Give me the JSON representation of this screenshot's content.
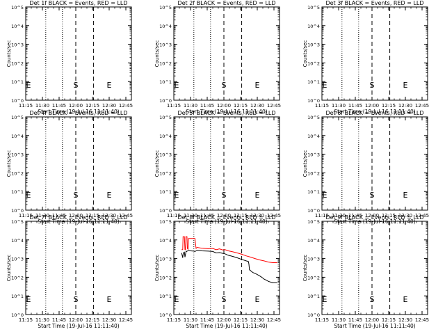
{
  "chart_data": [
    {
      "type": "line",
      "title": "Det 1f BLACK = Events, RED = LLD",
      "ylabel": "Counts/sec",
      "xlabel": "Start Time (19-Jul-16 11:11:40)",
      "xticks": [
        "11:15",
        "11:30",
        "11:45",
        "12:00",
        "12:15",
        "12:30",
        "12:45"
      ],
      "yticks": [
        "10^0",
        "10^1",
        "10^2",
        "10^3",
        "10^4",
        "10^5"
      ],
      "yscale": "log",
      "ylim": [
        1,
        100000
      ],
      "xlim_minutes": [
        675,
        770
      ],
      "dotted_lines_minutes": [
        693,
        708
      ],
      "dashed_lines_minutes": [
        720,
        736
      ],
      "markers": [
        {
          "label": "E",
          "x": 675
        },
        {
          "label": "S",
          "x": 720
        },
        {
          "label": "E",
          "x": 750
        }
      ],
      "series": []
    },
    {
      "type": "line",
      "title": "Det 2f BLACK = Events, RED = LLD",
      "ylabel": "Counts/sec",
      "xlabel": "Start Time (19-Jul-16 11:11:40)",
      "xticks": [
        "11:15",
        "11:30",
        "11:45",
        "12:00",
        "12:15",
        "12:30",
        "12:45"
      ],
      "yticks": [
        "10^0",
        "10^1",
        "10^2",
        "10^3",
        "10^4",
        "10^5"
      ],
      "yscale": "log",
      "ylim": [
        1,
        100000
      ],
      "xlim_minutes": [
        675,
        770
      ],
      "dotted_lines_minutes": [
        693,
        708
      ],
      "dashed_lines_minutes": [
        720,
        736
      ],
      "markers": [
        {
          "label": "E",
          "x": 675
        },
        {
          "label": "S",
          "x": 720
        },
        {
          "label": "E",
          "x": 750
        }
      ],
      "series": []
    },
    {
      "type": "line",
      "title": "Det 3f BLACK = Events, RED = LLD",
      "ylabel": "Counts/sec",
      "xlabel": "Start Time (19-Jul-16 11:11:40)",
      "xticks": [
        "11:15",
        "11:30",
        "11:45",
        "12:00",
        "12:15",
        "12:30",
        "12:45"
      ],
      "yticks": [
        "10^0",
        "10^1",
        "10^2",
        "10^3",
        "10^4",
        "10^5"
      ],
      "yscale": "log",
      "ylim": [
        1,
        100000
      ],
      "xlim_minutes": [
        675,
        770
      ],
      "dotted_lines_minutes": [
        693,
        708
      ],
      "dashed_lines_minutes": [
        720,
        736
      ],
      "markers": [
        {
          "label": "E",
          "x": 675
        },
        {
          "label": "S",
          "x": 720
        },
        {
          "label": "E",
          "x": 750
        }
      ],
      "series": []
    },
    {
      "type": "line",
      "title": "Det 4f BLACK = Events, RED = LLD",
      "ylabel": "Counts/sec",
      "xlabel": "Start Time (19-Jul-16 11:11:40)",
      "xticks": [
        "11:15",
        "11:30",
        "11:45",
        "12:00",
        "12:15",
        "12:30",
        "12:45"
      ],
      "yticks": [
        "10^0",
        "10^1",
        "10^2",
        "10^3",
        "10^4",
        "10^5"
      ],
      "yscale": "log",
      "ylim": [
        1,
        100000
      ],
      "xlim_minutes": [
        675,
        770
      ],
      "dotted_lines_minutes": [
        693,
        708
      ],
      "dashed_lines_minutes": [
        720,
        736
      ],
      "markers": [
        {
          "label": "E",
          "x": 675
        },
        {
          "label": "S",
          "x": 720
        },
        {
          "label": "E",
          "x": 750
        }
      ],
      "series": []
    },
    {
      "type": "line",
      "title": "Det 5f BLACK = Events, RED = LLD",
      "ylabel": "Counts/sec",
      "xlabel": "Start Time (19-Jul-16 11:11:40)",
      "xticks": [
        "11:15",
        "11:30",
        "11:45",
        "12:00",
        "12:15",
        "12:30",
        "12:45"
      ],
      "yticks": [
        "10^0",
        "10^1",
        "10^2",
        "10^3",
        "10^4",
        "10^5"
      ],
      "yscale": "log",
      "ylim": [
        1,
        100000
      ],
      "xlim_minutes": [
        675,
        770
      ],
      "dotted_lines_minutes": [
        693,
        708
      ],
      "dashed_lines_minutes": [
        720,
        736
      ],
      "markers": [
        {
          "label": "E",
          "x": 675
        },
        {
          "label": "S",
          "x": 720
        },
        {
          "label": "E",
          "x": 750
        }
      ],
      "series": []
    },
    {
      "type": "line",
      "title": "Det 6f BLACK = Events, RED = LLD",
      "ylabel": "Counts/sec",
      "xlabel": "Start Time (19-Jul-16 11:11:40)",
      "xticks": [
        "11:15",
        "11:30",
        "11:45",
        "12:00",
        "12:15",
        "12:30",
        "12:45"
      ],
      "yticks": [
        "10^0",
        "10^1",
        "10^2",
        "10^3",
        "10^4",
        "10^5"
      ],
      "yscale": "log",
      "ylim": [
        1,
        100000
      ],
      "xlim_minutes": [
        675,
        770
      ],
      "dotted_lines_minutes": [
        693,
        708
      ],
      "dashed_lines_minutes": [
        720,
        736
      ],
      "markers": [
        {
          "label": "E",
          "x": 675
        },
        {
          "label": "S",
          "x": 720
        },
        {
          "label": "E",
          "x": 750
        }
      ],
      "series": []
    },
    {
      "type": "line",
      "title": "Det 7f BLACK = Events, RED = LLD",
      "ylabel": "Counts/sec",
      "xlabel": "Start Time (19-Jul-16 11:11:40)",
      "xticks": [
        "11:15",
        "11:30",
        "11:45",
        "12:00",
        "12:15",
        "12:30",
        "12:45"
      ],
      "yticks": [
        "10^0",
        "10^1",
        "10^2",
        "10^3",
        "10^4",
        "10^5"
      ],
      "yscale": "log",
      "ylim": [
        1,
        100000
      ],
      "xlim_minutes": [
        675,
        770
      ],
      "dotted_lines_minutes": [
        693,
        708
      ],
      "dashed_lines_minutes": [
        720,
        736
      ],
      "markers": [
        {
          "label": "E",
          "x": 675
        },
        {
          "label": "S",
          "x": 720
        },
        {
          "label": "E",
          "x": 750
        }
      ],
      "series": []
    },
    {
      "type": "line",
      "title": "Det 8f BLACK = Events, RED = LLD",
      "ylabel": "Counts/sec",
      "xlabel": "Start Time (19-Jul-16 11:11:40)",
      "xticks": [
        "11:15",
        "11:30",
        "11:45",
        "12:00",
        "12:15",
        "12:30",
        "12:45"
      ],
      "yticks": [
        "10^0",
        "10^1",
        "10^2",
        "10^3",
        "10^4",
        "10^5"
      ],
      "yscale": "log",
      "ylim": [
        1,
        100000
      ],
      "xlim_minutes": [
        675,
        770
      ],
      "dotted_lines_minutes": [
        693,
        708
      ],
      "dashed_lines_minutes": [
        720,
        736
      ],
      "markers": [
        {
          "label": "E",
          "x": 675
        },
        {
          "label": "S",
          "x": 720
        },
        {
          "label": "E",
          "x": 750
        }
      ],
      "series": [
        {
          "color": "#ff0000",
          "x": [
            682,
            683,
            683.3,
            684.5,
            685,
            685.5,
            685.8,
            686.8,
            687.2,
            687.8,
            688.2,
            689,
            693,
            694,
            695,
            696,
            700,
            706,
            710,
            713,
            716,
            719,
            721,
            724,
            728,
            732,
            736,
            740,
            744,
            748,
            752,
            756,
            760,
            764,
            768
          ],
          "y": [
            3000,
            3000,
            15000,
            15000,
            3000,
            3000,
            15000,
            15000,
            3500,
            3200,
            12000,
            12000,
            12000,
            12000,
            3500,
            4000,
            3600,
            3400,
            3500,
            3000,
            3300,
            2900,
            3000,
            2600,
            2300,
            2000,
            1700,
            1400,
            1200,
            1000,
            850,
            750,
            650,
            600,
            600
          ]
        },
        {
          "color": "#000000",
          "x": [
            682,
            683,
            683.5,
            684.5,
            685,
            686,
            686.5,
            687.5,
            688,
            690,
            693,
            694,
            695,
            696,
            700,
            706,
            710,
            713,
            716,
            719,
            721,
            724,
            728,
            732,
            736,
            740,
            742,
            742.5,
            743,
            746,
            749,
            752,
            754,
            756,
            758,
            760,
            764,
            768
          ],
          "y": [
            2000,
            1100,
            2000,
            2200,
            1200,
            2500,
            2400,
            2600,
            2700,
            2600,
            2500,
            2400,
            2600,
            2800,
            2600,
            2500,
            2400,
            2000,
            2100,
            1900,
            1800,
            1500,
            1300,
            1100,
            900,
            750,
            700,
            500,
            250,
            180,
            150,
            120,
            100,
            80,
            70,
            60,
            50,
            50
          ]
        }
      ]
    },
    {
      "type": "line",
      "title": "Det 9f BLACK = Events, RED = LLD",
      "ylabel": "Counts/sec",
      "xlabel": "Start Time (19-Jul-16 11:11:40)",
      "xticks": [
        "11:15",
        "11:30",
        "11:45",
        "12:00",
        "12:15",
        "12:30",
        "12:45"
      ],
      "yticks": [
        "10^0",
        "10^1",
        "10^2",
        "10^3",
        "10^4",
        "10^5"
      ],
      "yscale": "log",
      "ylim": [
        1,
        100000
      ],
      "xlim_minutes": [
        675,
        770
      ],
      "dotted_lines_minutes": [
        693,
        708
      ],
      "dashed_lines_minutes": [
        720,
        736
      ],
      "markers": [
        {
          "label": "E",
          "x": 675
        },
        {
          "label": "S",
          "x": 720
        },
        {
          "label": "E",
          "x": 750
        }
      ],
      "series": []
    }
  ]
}
